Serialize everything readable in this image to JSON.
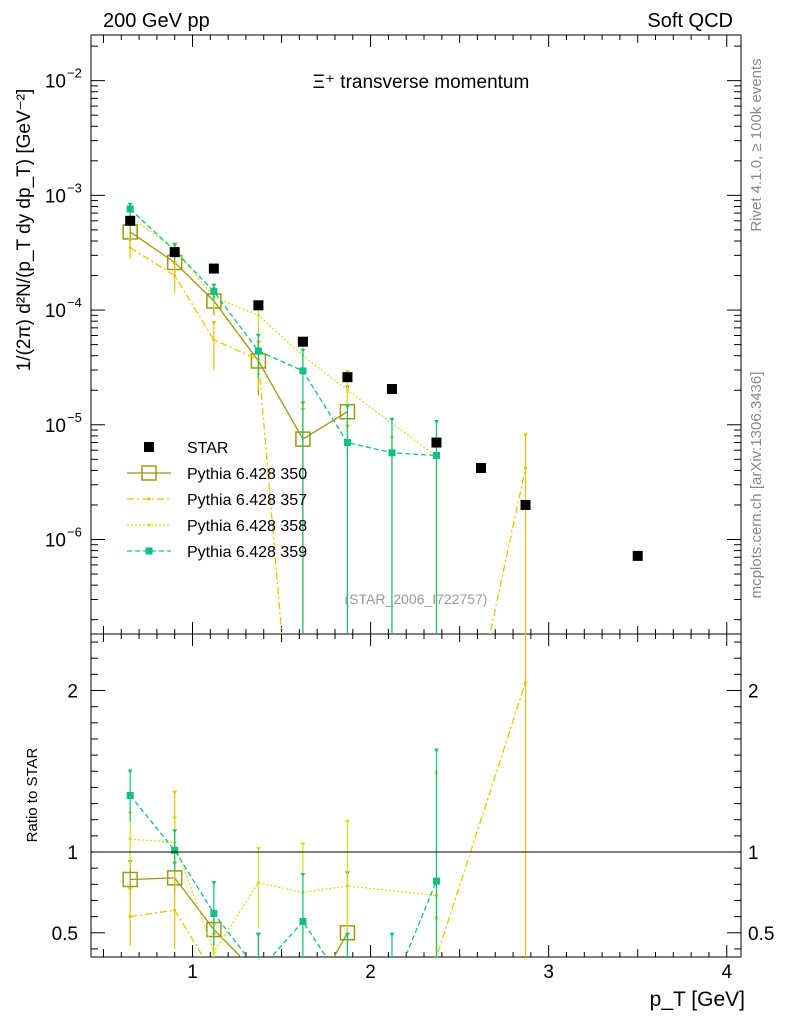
{
  "header": {
    "left": "200 GeV pp",
    "right": "Soft QCD",
    "title": "Ξ⁺ transverse momentum",
    "watermark": "(STAR_2006_I722757)",
    "side_rivet": "Rivet 4.1.0, ≥ 100k events",
    "side_site": "mcplots.cern.ch [arXiv:1306.3436]"
  },
  "chart_data": {
    "type": "scatter",
    "main": {
      "ylabel": "1/(2π)  d²N/(p_T dy dp_T) [GeV⁻²]",
      "yscale": "log",
      "ylim": [
        1.5e-07,
        0.025
      ],
      "ytick_labels": [
        {
          "value": 1e-06,
          "mant": "10",
          "exp": "−6"
        },
        {
          "value": 1e-05,
          "mant": "10",
          "exp": "−5"
        },
        {
          "value": 0.0001,
          "mant": "10",
          "exp": "−4"
        },
        {
          "value": 0.001,
          "mant": "10",
          "exp": "−3"
        },
        {
          "value": 0.01,
          "mant": "10",
          "exp": "−2"
        }
      ]
    },
    "ratio": {
      "ylabel": "Ratio to STAR",
      "ylim": [
        0.35,
        2.35
      ],
      "yticks": [
        0.5,
        1,
        2
      ],
      "ytick_labels": [
        "0.5",
        "1",
        "2"
      ]
    },
    "xlabel": "p_T [GeV]",
    "xlim": [
      0.43,
      4.08
    ],
    "xticks": [
      1,
      2,
      3,
      4
    ],
    "xtick_labels": [
      "1",
      "2",
      "3",
      "4"
    ],
    "data": {
      "name": "STAR",
      "color": "#000000",
      "x": [
        0.65,
        0.9,
        1.12,
        1.37,
        1.62,
        1.87,
        2.12,
        2.37,
        2.62,
        2.87,
        3.5
      ],
      "y": [
        0.0006,
        0.00032,
        0.00023,
        0.00011,
        5.3e-05,
        2.6e-05,
        2.05e-05,
        7e-06,
        4.2e-06,
        2e-06,
        7.2e-07
      ]
    },
    "series": [
      {
        "name": "Pythia 6.428 350",
        "color": "#9a9a10",
        "dash": "",
        "marker": "open-square",
        "x": [
          0.65,
          0.9,
          1.12,
          1.37,
          1.62,
          1.87
        ],
        "y": [
          0.00048,
          0.00026,
          0.00012,
          3.6e-05,
          7.5e-06,
          1.3e-05
        ],
        "ylo": [
          0.00038,
          0.00021,
          9e-05,
          1.8e-05,
          1e-09,
          5e-06
        ],
        "yhi": [
          0.00058,
          0.00031,
          0.00015,
          5.4e-05,
          1.6e-05,
          2.2e-05
        ],
        "ratio": [
          0.83,
          0.84,
          0.52,
          0.24,
          0.0,
          0.5
        ],
        "ratio_lo": [
          0.72,
          0.74,
          0.35,
          0.0,
          0.0,
          0.0
        ],
        "ratio_hi": [
          0.95,
          0.94,
          0.62,
          0.5,
          0.3,
          0.88
        ]
      },
      {
        "name": "Pythia 6.428 357",
        "color": "#f0c000",
        "dash": "7,3,2,3",
        "marker": "dot",
        "x": [
          0.65,
          0.9,
          1.12,
          1.37,
          1.62,
          1.87,
          2.12,
          2.37,
          2.87
        ],
        "y": [
          0.00035,
          0.0002,
          5.5e-05,
          3.7e-05,
          1e-09,
          1e-09,
          1e-09,
          1e-09,
          4.2e-06
        ],
        "ylo": [
          0.00028,
          0.00014,
          3e-05,
          2e-05,
          1e-09,
          1e-09,
          1e-09,
          1e-09,
          1e-09
        ],
        "yhi": [
          0.00042,
          0.00026,
          8e-05,
          5.4e-05,
          1.4e-05,
          1e-05,
          8e-06,
          7e-06,
          8.4e-06
        ],
        "ratio": [
          0.6,
          0.64,
          0.24,
          0.0,
          0.0,
          0.0,
          0.0,
          0.35,
          2.05
        ],
        "ratio_lo": [
          0.42,
          0.4,
          0.0,
          0.0,
          0.0,
          0.0,
          0.0,
          0.0,
          0.0
        ],
        "ratio_hi": [
          0.78,
          1.38,
          0.5,
          0.34,
          0.32,
          0.3,
          0.3,
          0.6,
          4.0
        ]
      },
      {
        "name": "Pythia 6.428 358",
        "color": "#d8dc20",
        "dash": "2,2",
        "marker": "dot",
        "x": [
          0.65,
          0.9,
          1.12,
          1.37,
          1.62,
          1.87,
          2.37
        ],
        "y": [
          0.00065,
          0.00034,
          0.00013,
          9e-05,
          4e-05,
          2e-05,
          5.3e-06
        ],
        "ylo": [
          0.00055,
          0.00029,
          0.0001,
          6e-05,
          2.5e-05,
          1e-05,
          1e-09
        ],
        "yhi": [
          0.00075,
          0.00039,
          0.00016,
          0.00012,
          5.5e-05,
          3e-05,
          1.1e-05
        ],
        "ratio": [
          1.08,
          1.06,
          0.38,
          0.81,
          0.75,
          0.79,
          0.73
        ],
        "ratio_lo": [
          0.9,
          0.9,
          0.2,
          0.53,
          0.42,
          0.38,
          0.0
        ],
        "ratio_hi": [
          1.25,
          1.22,
          0.56,
          1.03,
          1.06,
          1.2,
          1.5
        ]
      },
      {
        "name": "Pythia 6.428 359",
        "color": "#10c080",
        "dash": "5,3",
        "marker": "filled-square",
        "x": [
          0.65,
          0.9,
          1.12,
          1.37,
          1.62,
          1.87,
          2.12,
          2.37
        ],
        "y": [
          0.00076,
          0.00033,
          0.000145,
          4.4e-05,
          2.95e-05,
          7e-06,
          5.7e-06,
          5.4e-06
        ],
        "ylo": [
          0.00066,
          0.00028,
          0.00012,
          2.6e-05,
          1e-09,
          1e-09,
          1e-09,
          1e-09
        ],
        "yhi": [
          0.00086,
          0.00038,
          0.00017,
          6.2e-05,
          4.6e-05,
          1.5e-05,
          1.15e-05,
          1.1e-05
        ],
        "ratio": [
          1.35,
          1.01,
          0.62,
          0.26,
          0.57,
          0.15,
          0.15,
          0.82
        ],
        "ratio_lo": [
          1.19,
          0.88,
          0.42,
          0.0,
          0.0,
          0.0,
          0.0,
          0.0
        ],
        "ratio_hi": [
          1.51,
          1.14,
          0.82,
          0.5,
          0.87,
          0.5,
          0.5,
          1.64
        ]
      }
    ]
  }
}
